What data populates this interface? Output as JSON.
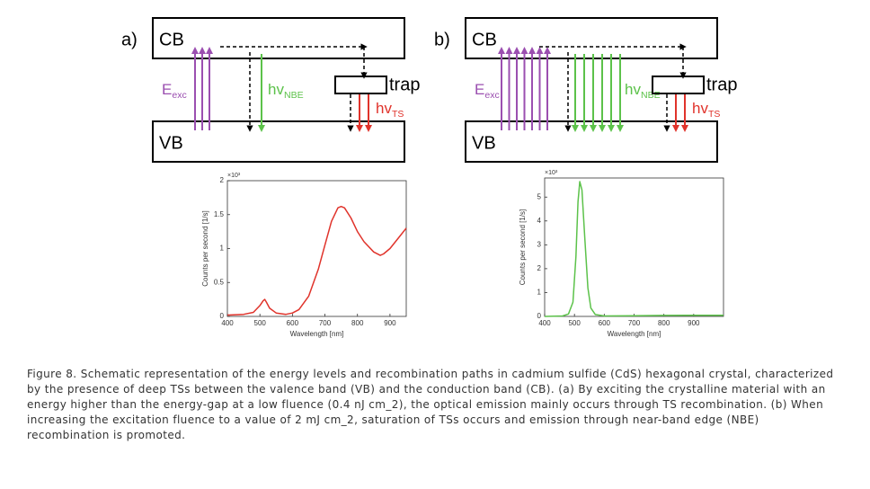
{
  "panels": [
    {
      "label": "a)",
      "diagram": {
        "cb": "CB",
        "vb": "VB",
        "excitation": {
          "main": "E",
          "sub": "exc"
        },
        "nbe": {
          "main": "hv",
          "sub": "NBE"
        },
        "trap": "trap",
        "ts": {
          "main": "hv",
          "sub": "TS"
        }
      },
      "chart_data": {
        "type": "line",
        "xlabel": "Wavelength [nm]",
        "ylabel": "Counts per second [1/s]",
        "y_multiplier": "×10³",
        "xlim": [
          400,
          950
        ],
        "ylim": [
          0,
          2
        ],
        "xticks": [
          400,
          500,
          600,
          700,
          800,
          900
        ],
        "yticks": [
          0,
          0.5,
          1,
          1.5,
          2
        ],
        "x": [
          400,
          450,
          480,
          500,
          510,
          515,
          520,
          530,
          550,
          580,
          600,
          620,
          650,
          680,
          700,
          720,
          740,
          750,
          760,
          780,
          800,
          820,
          850,
          870,
          880,
          900,
          930,
          950
        ],
        "series": [
          {
            "color": "#e0332b",
            "values": [
              0.02,
              0.03,
              0.06,
              0.16,
              0.23,
              0.25,
              0.21,
              0.12,
              0.05,
              0.03,
              0.05,
              0.1,
              0.3,
              0.7,
              1.05,
              1.4,
              1.6,
              1.62,
              1.6,
              1.45,
              1.25,
              1.1,
              0.95,
              0.9,
              0.92,
              1.0,
              1.18,
              1.3
            ]
          }
        ]
      }
    },
    {
      "label": "b)",
      "diagram": {
        "cb": "CB",
        "vb": "VB",
        "excitation": {
          "main": "E",
          "sub": "exc"
        },
        "nbe": {
          "main": "hv",
          "sub": "NBE"
        },
        "trap": "trap",
        "ts": {
          "main": "hv",
          "sub": "TS"
        }
      },
      "chart_data": {
        "type": "line",
        "xlabel": "Wavelength [nm]",
        "ylabel": "Counts per second [1/s]",
        "y_multiplier": "×10³",
        "xlim": [
          400,
          1000
        ],
        "ylim": [
          0,
          5.8
        ],
        "xticks": [
          400,
          500,
          600,
          700,
          800,
          900
        ],
        "yticks": [
          0,
          1,
          2,
          3,
          4,
          5
        ],
        "x": [
          400,
          460,
          480,
          495,
          505,
          512,
          518,
          525,
          535,
          545,
          555,
          570,
          600,
          700,
          800,
          900,
          1000
        ],
        "series": [
          {
            "color": "#5cc24a",
            "values": [
              0,
              0.02,
              0.1,
              0.6,
              2.5,
              4.8,
              5.65,
              5.3,
              3.2,
              1.2,
              0.35,
              0.08,
              0.02,
              0.03,
              0.04,
              0.05,
              0.05
            ]
          }
        ]
      }
    }
  ],
  "caption": "Figure 8. Schematic representation of the energy levels and recombination paths in cadmium sulfide (CdS) hexagonal crystal, characterized by the presence of deep TSs between the valence band (VB) and the conduction band (CB). (a) By exciting the crystalline material with an energy higher than the energy-gap at a low fluence (0.4 nJ cm_2), the optical emission mainly occurs through TS recombination. (b) When increasing the excitation fluence to a value of 2 mJ cm_2, saturation of TSs occurs and emission through near-band edge (NBE) recombination is promoted."
}
